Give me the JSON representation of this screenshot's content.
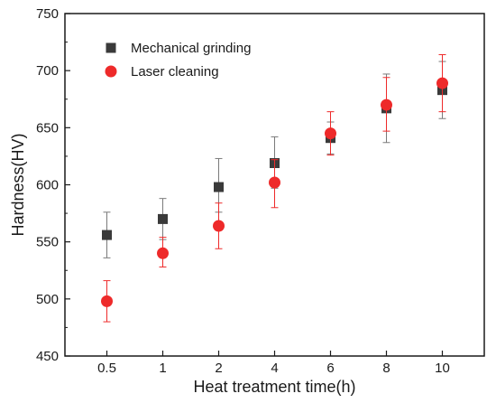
{
  "chart_data": {
    "type": "scatter",
    "xlabel": "Heat treatment time(h)",
    "ylabel": "Hardness(HV)",
    "categories": [
      "0.5",
      "1",
      "2",
      "4",
      "6",
      "8",
      "10"
    ],
    "ylim": [
      450,
      750
    ],
    "yticks": [
      450,
      500,
      550,
      600,
      650,
      700,
      750
    ],
    "grid": false,
    "legend_position": "top-left",
    "series": [
      {
        "name": "Mechanical grinding",
        "marker": "square",
        "color": "#3a3a3a",
        "errorbar_color": "#7a7a7a",
        "values": [
          556,
          570,
          598,
          619,
          641,
          667,
          683
        ],
        "error_low": [
          536,
          552,
          576,
          597,
          627,
          637,
          658
        ],
        "error_high": [
          576,
          588,
          623,
          642,
          655,
          697,
          708
        ]
      },
      {
        "name": "Laser cleaning",
        "marker": "circle",
        "color": "#ee2a2a",
        "errorbar_color": "#ee2a2a",
        "values": [
          498,
          540,
          564,
          602,
          645,
          670,
          689
        ],
        "error_low": [
          480,
          528,
          544,
          580,
          626,
          647,
          664
        ],
        "error_high": [
          516,
          554,
          584,
          622,
          664,
          694,
          714
        ]
      }
    ]
  }
}
